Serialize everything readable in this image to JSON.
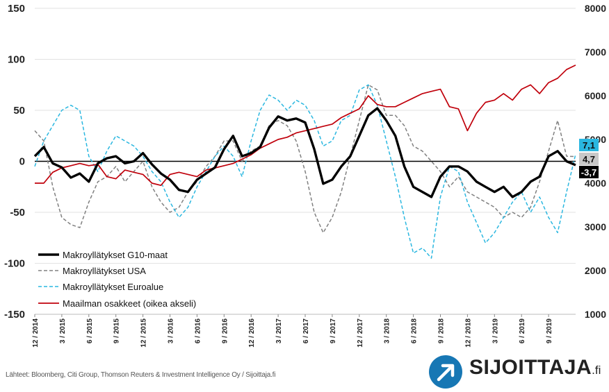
{
  "chart_data": {
    "type": "line",
    "y_left": {
      "ylim": [
        -150,
        150
      ],
      "ticks": [
        "150",
        "100",
        "50",
        "0",
        "-50",
        "-100",
        "-150"
      ]
    },
    "y_right": {
      "ylim": [
        1000,
        8000
      ],
      "ticks": [
        "8000",
        "7000",
        "6000",
        "5000",
        "4000",
        "3000",
        "2000",
        "1000"
      ]
    },
    "x_ticks": [
      "12 / 2014",
      "3 / 2015",
      "6 / 2015",
      "9 / 2015",
      "12 / 2015",
      "3 / 2016",
      "6 / 2016",
      "9 / 2016",
      "12 / 2016",
      "3 / 2017",
      "6 / 2017",
      "9 / 2017",
      "12 / 2017",
      "3 / 2018",
      "6 / 2018",
      "9 / 2018",
      "12 / 2018",
      "3 / 2019",
      "6 / 2019",
      "9 / 2019"
    ],
    "x_range": [
      "2014-12",
      "2019-12"
    ],
    "series": [
      {
        "name": "Makroyllätykset G10-maat",
        "axis": "left",
        "style": "solid-thick",
        "color": "#000000",
        "end_label": "-3,7",
        "points": [
          [
            "2014-12",
            5
          ],
          [
            "2015-01",
            14
          ],
          [
            "2015-02",
            -2
          ],
          [
            "2015-03",
            -6
          ],
          [
            "2015-04",
            -16
          ],
          [
            "2015-05",
            -12
          ],
          [
            "2015-06",
            -20
          ],
          [
            "2015-07",
            -2
          ],
          [
            "2015-08",
            3
          ],
          [
            "2015-09",
            5
          ],
          [
            "2015-10",
            -2
          ],
          [
            "2015-11",
            0
          ],
          [
            "2015-12",
            8
          ],
          [
            "2016-01",
            -3
          ],
          [
            "2016-02",
            -12
          ],
          [
            "2016-03",
            -18
          ],
          [
            "2016-04",
            -28
          ],
          [
            "2016-05",
            -30
          ],
          [
            "2016-06",
            -18
          ],
          [
            "2016-07",
            -12
          ],
          [
            "2016-08",
            -6
          ],
          [
            "2016-09",
            12
          ],
          [
            "2016-10",
            25
          ],
          [
            "2016-11",
            5
          ],
          [
            "2016-12",
            8
          ],
          [
            "2017-01",
            14
          ],
          [
            "2017-02",
            33
          ],
          [
            "2017-03",
            44
          ],
          [
            "2017-04",
            40
          ],
          [
            "2017-05",
            42
          ],
          [
            "2017-06",
            38
          ],
          [
            "2017-07",
            12
          ],
          [
            "2017-08",
            -22
          ],
          [
            "2017-09",
            -18
          ],
          [
            "2017-10",
            -5
          ],
          [
            "2017-11",
            5
          ],
          [
            "2017-12",
            25
          ],
          [
            "2018-01",
            45
          ],
          [
            "2018-02",
            52
          ],
          [
            "2018-03",
            40
          ],
          [
            "2018-04",
            25
          ],
          [
            "2018-05",
            -5
          ],
          [
            "2018-06",
            -25
          ],
          [
            "2018-07",
            -30
          ],
          [
            "2018-08",
            -35
          ],
          [
            "2018-09",
            -15
          ],
          [
            "2018-10",
            -5
          ],
          [
            "2018-11",
            -5
          ],
          [
            "2018-12",
            -10
          ],
          [
            "2019-01",
            -20
          ],
          [
            "2019-02",
            -25
          ],
          [
            "2019-03",
            -30
          ],
          [
            "2019-04",
            -25
          ],
          [
            "2019-05",
            -35
          ],
          [
            "2019-06",
            -30
          ],
          [
            "2019-07",
            -20
          ],
          [
            "2019-08",
            -15
          ],
          [
            "2019-09",
            5
          ],
          [
            "2019-10",
            10
          ],
          [
            "2019-11",
            0
          ],
          [
            "2019-12",
            -3.7
          ]
        ]
      },
      {
        "name": "Makroyllätykset USA",
        "axis": "left",
        "style": "dashed",
        "color": "#808080",
        "end_label": "4,7",
        "points": [
          [
            "2014-12",
            30
          ],
          [
            "2015-01",
            20
          ],
          [
            "2015-02",
            -25
          ],
          [
            "2015-03",
            -55
          ],
          [
            "2015-04",
            -62
          ],
          [
            "2015-05",
            -65
          ],
          [
            "2015-06",
            -40
          ],
          [
            "2015-07",
            -20
          ],
          [
            "2015-08",
            -15
          ],
          [
            "2015-09",
            -5
          ],
          [
            "2015-10",
            -20
          ],
          [
            "2015-11",
            -10
          ],
          [
            "2015-12",
            0
          ],
          [
            "2016-01",
            -25
          ],
          [
            "2016-02",
            -40
          ],
          [
            "2016-03",
            -50
          ],
          [
            "2016-04",
            -45
          ],
          [
            "2016-05",
            -30
          ],
          [
            "2016-06",
            -20
          ],
          [
            "2016-07",
            -5
          ],
          [
            "2016-08",
            5
          ],
          [
            "2016-09",
            20
          ],
          [
            "2016-10",
            20
          ],
          [
            "2016-11",
            0
          ],
          [
            "2016-12",
            10
          ],
          [
            "2017-01",
            15
          ],
          [
            "2017-02",
            35
          ],
          [
            "2017-03",
            40
          ],
          [
            "2017-04",
            35
          ],
          [
            "2017-05",
            20
          ],
          [
            "2017-06",
            -10
          ],
          [
            "2017-07",
            -50
          ],
          [
            "2017-08",
            -70
          ],
          [
            "2017-09",
            -55
          ],
          [
            "2017-10",
            -30
          ],
          [
            "2017-11",
            5
          ],
          [
            "2017-12",
            40
          ],
          [
            "2018-01",
            75
          ],
          [
            "2018-02",
            70
          ],
          [
            "2018-03",
            45
          ],
          [
            "2018-04",
            45
          ],
          [
            "2018-05",
            35
          ],
          [
            "2018-06",
            15
          ],
          [
            "2018-07",
            10
          ],
          [
            "2018-08",
            0
          ],
          [
            "2018-09",
            -10
          ],
          [
            "2018-10",
            -25
          ],
          [
            "2018-11",
            -15
          ],
          [
            "2018-12",
            -30
          ],
          [
            "2019-01",
            -35
          ],
          [
            "2019-02",
            -40
          ],
          [
            "2019-03",
            -45
          ],
          [
            "2019-04",
            -55
          ],
          [
            "2019-05",
            -50
          ],
          [
            "2019-06",
            -55
          ],
          [
            "2019-07",
            -45
          ],
          [
            "2019-08",
            -20
          ],
          [
            "2019-09",
            10
          ],
          [
            "2019-10",
            40
          ],
          [
            "2019-11",
            5
          ],
          [
            "2019-12",
            4.7
          ]
        ]
      },
      {
        "name": "Makroyllätykset Euroalue",
        "axis": "left",
        "style": "dashed",
        "color": "#2ab7e0",
        "end_label": "7,1",
        "points": [
          [
            "2014-12",
            -5
          ],
          [
            "2015-01",
            20
          ],
          [
            "2015-02",
            35
          ],
          [
            "2015-03",
            50
          ],
          [
            "2015-04",
            55
          ],
          [
            "2015-05",
            50
          ],
          [
            "2015-06",
            5
          ],
          [
            "2015-07",
            -10
          ],
          [
            "2015-08",
            10
          ],
          [
            "2015-09",
            25
          ],
          [
            "2015-10",
            20
          ],
          [
            "2015-11",
            15
          ],
          [
            "2015-12",
            5
          ],
          [
            "2016-01",
            -10
          ],
          [
            "2016-02",
            -20
          ],
          [
            "2016-03",
            -40
          ],
          [
            "2016-04",
            -55
          ],
          [
            "2016-05",
            -45
          ],
          [
            "2016-06",
            -25
          ],
          [
            "2016-07",
            -10
          ],
          [
            "2016-08",
            5
          ],
          [
            "2016-09",
            15
          ],
          [
            "2016-10",
            5
          ],
          [
            "2016-11",
            -15
          ],
          [
            "2016-12",
            20
          ],
          [
            "2017-01",
            50
          ],
          [
            "2017-02",
            65
          ],
          [
            "2017-03",
            60
          ],
          [
            "2017-04",
            50
          ],
          [
            "2017-05",
            60
          ],
          [
            "2017-06",
            55
          ],
          [
            "2017-07",
            40
          ],
          [
            "2017-08",
            15
          ],
          [
            "2017-09",
            20
          ],
          [
            "2017-10",
            40
          ],
          [
            "2017-11",
            45
          ],
          [
            "2017-12",
            70
          ],
          [
            "2018-01",
            75
          ],
          [
            "2018-02",
            55
          ],
          [
            "2018-03",
            20
          ],
          [
            "2018-04",
            -15
          ],
          [
            "2018-05",
            -55
          ],
          [
            "2018-06",
            -90
          ],
          [
            "2018-07",
            -85
          ],
          [
            "2018-08",
            -95
          ],
          [
            "2018-09",
            -35
          ],
          [
            "2018-10",
            -5
          ],
          [
            "2018-11",
            -10
          ],
          [
            "2018-12",
            -40
          ],
          [
            "2019-01",
            -60
          ],
          [
            "2019-02",
            -80
          ],
          [
            "2019-03",
            -70
          ],
          [
            "2019-04",
            -55
          ],
          [
            "2019-05",
            -40
          ],
          [
            "2019-06",
            -30
          ],
          [
            "2019-07",
            -50
          ],
          [
            "2019-08",
            -35
          ],
          [
            "2019-09",
            -55
          ],
          [
            "2019-10",
            -70
          ],
          [
            "2019-11",
            -30
          ],
          [
            "2019-12",
            7.1
          ]
        ]
      },
      {
        "name": "Maailman osakkeet (oikea akseli)",
        "axis": "right",
        "style": "solid",
        "color": "#c0000b",
        "points": [
          [
            "2014-12",
            4000
          ],
          [
            "2015-01",
            4000
          ],
          [
            "2015-02",
            4250
          ],
          [
            "2015-03",
            4350
          ],
          [
            "2015-04",
            4400
          ],
          [
            "2015-05",
            4450
          ],
          [
            "2015-06",
            4400
          ],
          [
            "2015-07",
            4430
          ],
          [
            "2015-08",
            4150
          ],
          [
            "2015-09",
            4100
          ],
          [
            "2015-10",
            4300
          ],
          [
            "2015-11",
            4250
          ],
          [
            "2015-12",
            4200
          ],
          [
            "2016-01",
            4000
          ],
          [
            "2016-02",
            3950
          ],
          [
            "2016-03",
            4200
          ],
          [
            "2016-04",
            4250
          ],
          [
            "2016-05",
            4200
          ],
          [
            "2016-06",
            4150
          ],
          [
            "2016-07",
            4300
          ],
          [
            "2016-08",
            4350
          ],
          [
            "2016-09",
            4400
          ],
          [
            "2016-10",
            4450
          ],
          [
            "2016-11",
            4550
          ],
          [
            "2016-12",
            4650
          ],
          [
            "2017-01",
            4800
          ],
          [
            "2017-02",
            4900
          ],
          [
            "2017-03",
            5000
          ],
          [
            "2017-04",
            5050
          ],
          [
            "2017-05",
            5150
          ],
          [
            "2017-06",
            5200
          ],
          [
            "2017-07",
            5250
          ],
          [
            "2017-08",
            5300
          ],
          [
            "2017-09",
            5350
          ],
          [
            "2017-10",
            5500
          ],
          [
            "2017-11",
            5600
          ],
          [
            "2017-12",
            5700
          ],
          [
            "2018-01",
            6000
          ],
          [
            "2018-02",
            5800
          ],
          [
            "2018-03",
            5750
          ],
          [
            "2018-04",
            5750
          ],
          [
            "2018-05",
            5850
          ],
          [
            "2018-06",
            5950
          ],
          [
            "2018-07",
            6050
          ],
          [
            "2018-08",
            6100
          ],
          [
            "2018-09",
            6150
          ],
          [
            "2018-10",
            5750
          ],
          [
            "2018-11",
            5700
          ],
          [
            "2018-12",
            5200
          ],
          [
            "2019-01",
            5600
          ],
          [
            "2019-02",
            5850
          ],
          [
            "2019-03",
            5900
          ],
          [
            "2019-04",
            6050
          ],
          [
            "2019-05",
            5900
          ],
          [
            "2019-06",
            6150
          ],
          [
            "2019-07",
            6250
          ],
          [
            "2019-08",
            6050
          ],
          [
            "2019-09",
            6300
          ],
          [
            "2019-10",
            6400
          ],
          [
            "2019-11",
            6600
          ],
          [
            "2019-12",
            6700
          ]
        ]
      }
    ]
  },
  "source": "Lähteet: Bloomberg, Citi Group, Thomson Reuters & Investment Intelligence Oy / Sijoittaja.fi",
  "brand": {
    "name": "SIJOITTAJA",
    "suffix": ".fi",
    "color": "#1777b4"
  }
}
